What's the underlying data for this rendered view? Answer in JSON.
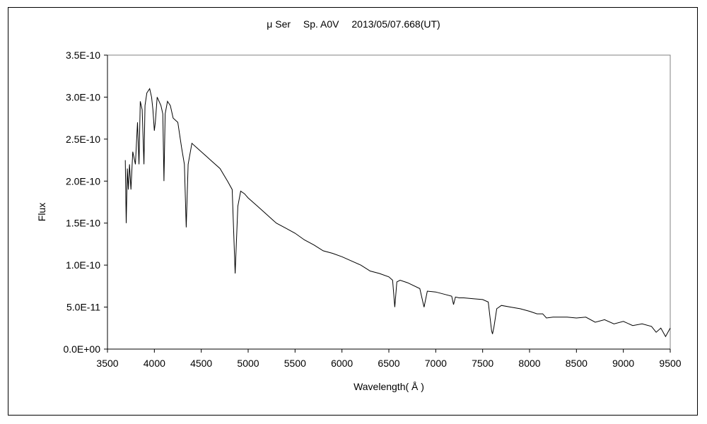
{
  "chart_data": {
    "type": "line",
    "title": "μ Ser　 Sp. A0V　 2013/05/07.668(UT)",
    "xlabel": "Wavelength( Å )",
    "ylabel": "Flux",
    "xlim": [
      3500,
      9500
    ],
    "ylim": [
      0,
      3.5e-10
    ],
    "x_ticks": [
      3500,
      4000,
      4500,
      5000,
      5500,
      6000,
      6500,
      7000,
      7500,
      8000,
      8500,
      9000,
      9500
    ],
    "x_tick_labels": [
      "3500",
      "4000",
      "4500",
      "5000",
      "5500",
      "6000",
      "6500",
      "7000",
      "7500",
      "8000",
      "8500",
      "9000",
      "9500"
    ],
    "y_ticks": [
      0,
      5e-11,
      1e-10,
      1.5e-10,
      2e-10,
      2.5e-10,
      3e-10,
      3.5e-10
    ],
    "y_tick_labels": [
      "0.0E+00",
      "5.0E-11",
      "1.0E-10",
      "1.5E-10",
      "2.0E-10",
      "2.5E-10",
      "3.0E-10",
      "3.5E-10"
    ],
    "grid": false,
    "legend": "none",
    "series": [
      {
        "color": "#000000",
        "x": [
          3690,
          3700,
          3712,
          3722,
          3735,
          3750,
          3770,
          3798,
          3820,
          3836,
          3850,
          3870,
          3889,
          3900,
          3920,
          3950,
          3970,
          3985,
          4000,
          4010,
          4030,
          4050,
          4070,
          4090,
          4102,
          4115,
          4140,
          4170,
          4200,
          4250,
          4290,
          4320,
          4340,
          4360,
          4400,
          4450,
          4500,
          4550,
          4600,
          4700,
          4780,
          4830,
          4861,
          4890,
          4920,
          4960,
          5000,
          5100,
          5200,
          5300,
          5400,
          5500,
          5600,
          5700,
          5800,
          5900,
          6000,
          6100,
          6200,
          6300,
          6400,
          6500,
          6540,
          6563,
          6585,
          6620,
          6700,
          6830,
          6865,
          6875,
          6910,
          7000,
          7100,
          7170,
          7190,
          7210,
          7250,
          7300,
          7400,
          7500,
          7560,
          7595,
          7605,
          7620,
          7650,
          7700,
          7800,
          7900,
          8000,
          8080,
          8140,
          8180,
          8250,
          8400,
          8500,
          8600,
          8700,
          8800,
          8900,
          9000,
          9100,
          9200,
          9300,
          9350,
          9400,
          9450,
          9500
        ],
        "y": [
          2.25e-10,
          1.5e-10,
          2.15e-10,
          1.9e-10,
          2.2e-10,
          1.9e-10,
          2.35e-10,
          2.2e-10,
          2.7e-10,
          2.2e-10,
          2.95e-10,
          2.85e-10,
          2.2e-10,
          2.9e-10,
          3.05e-10,
          3.1e-10,
          3e-10,
          2.85e-10,
          2.6e-10,
          2.7e-10,
          3e-10,
          2.95e-10,
          2.9e-10,
          2.8e-10,
          2e-10,
          2.8e-10,
          2.95e-10,
          2.9e-10,
          2.75e-10,
          2.7e-10,
          2.4e-10,
          2.2e-10,
          1.45e-10,
          2.2e-10,
          2.45e-10,
          2.4e-10,
          2.35e-10,
          2.3e-10,
          2.25e-10,
          2.15e-10,
          2e-10,
          1.9e-10,
          9e-11,
          1.7e-10,
          1.88e-10,
          1.85e-10,
          1.8e-10,
          1.7e-10,
          1.6e-10,
          1.5e-10,
          1.44e-10,
          1.38e-10,
          1.3e-10,
          1.24e-10,
          1.17e-10,
          1.14e-10,
          1.1e-10,
          1.05e-10,
          1e-10,
          9.3e-11,
          9e-11,
          8.6e-11,
          8.2e-11,
          5e-11,
          8e-11,
          8.2e-11,
          7.9e-11,
          7.2e-11,
          5.5e-11,
          5e-11,
          6.9e-11,
          6.8e-11,
          6.5e-11,
          6.3e-11,
          5.3e-11,
          6.2e-11,
          6.1e-11,
          6.1e-11,
          6e-11,
          5.9e-11,
          5.6e-11,
          2.2e-11,
          1.8e-11,
          2.6e-11,
          4.8e-11,
          5.2e-11,
          5e-11,
          4.8e-11,
          4.5e-11,
          4.2e-11,
          4.2e-11,
          3.7e-11,
          3.8e-11,
          3.8e-11,
          3.7e-11,
          3.8e-11,
          3.2e-11,
          3.5e-11,
          3e-11,
          3.3e-11,
          2.8e-11,
          3e-11,
          2.7e-11,
          2e-11,
          2.5e-11,
          1.5e-11,
          2.5e-11
        ]
      }
    ]
  }
}
